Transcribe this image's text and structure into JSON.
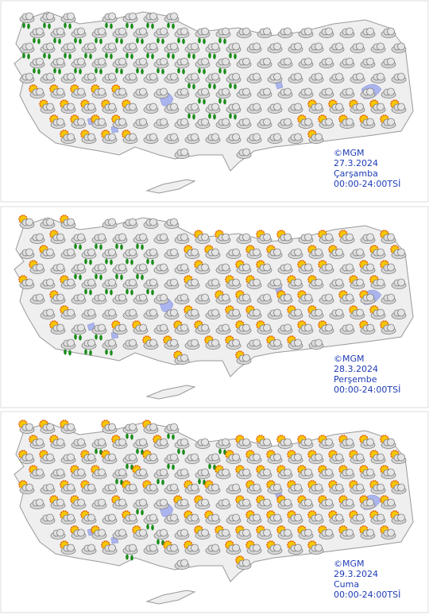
{
  "panels": [
    {
      "copyright": "©MGM",
      "date": "27.3.2024",
      "day": "Çarşamba",
      "time": "00:00-24:00TSİ"
    },
    {
      "copyright": "©MGM",
      "date": "28.3.2024",
      "day": "Perşembe",
      "time": "00:00-24:00TSİ"
    },
    {
      "copyright": "©MGM",
      "date": "29.3.2024",
      "day": "Cuma",
      "time": "00:00-24:00TSİ"
    }
  ]
}
